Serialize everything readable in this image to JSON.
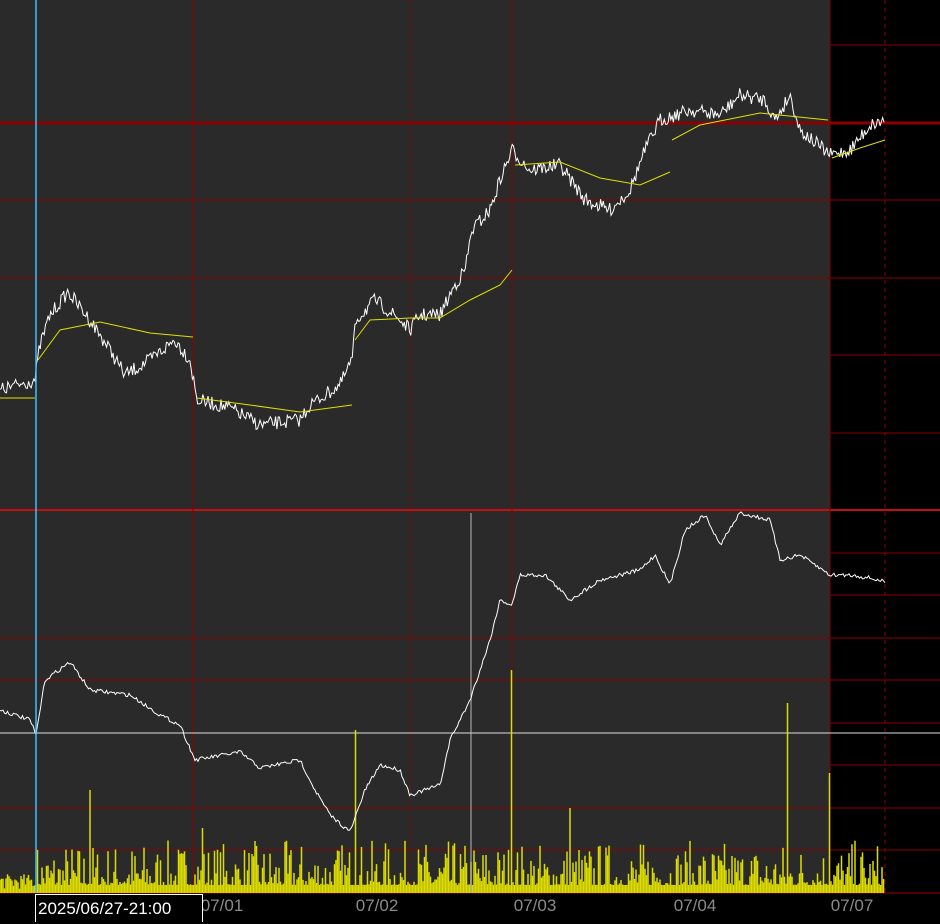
{
  "chart_data": {
    "type": "line",
    "title": "",
    "x_tick_labels": [
      "07/01",
      "07/02",
      "07/03",
      "07/04",
      "07/07"
    ],
    "cursor_time_label": "2025/06/27-21:00",
    "panels": [
      {
        "name": "",
        "series": [
          "price",
          "moving-average"
        ]
      },
      {
        "name": "",
        "series": [
          "indicator",
          "volume"
        ]
      }
    ],
    "grid": true,
    "colors": {
      "background": "#2a2a2a",
      "future_area": "#000000",
      "grid": "#8b0000",
      "price": "#ffffff",
      "moving_average": "#e0e000",
      "volume": "#dcdc00",
      "cursor": "#40c0ff"
    }
  }
}
